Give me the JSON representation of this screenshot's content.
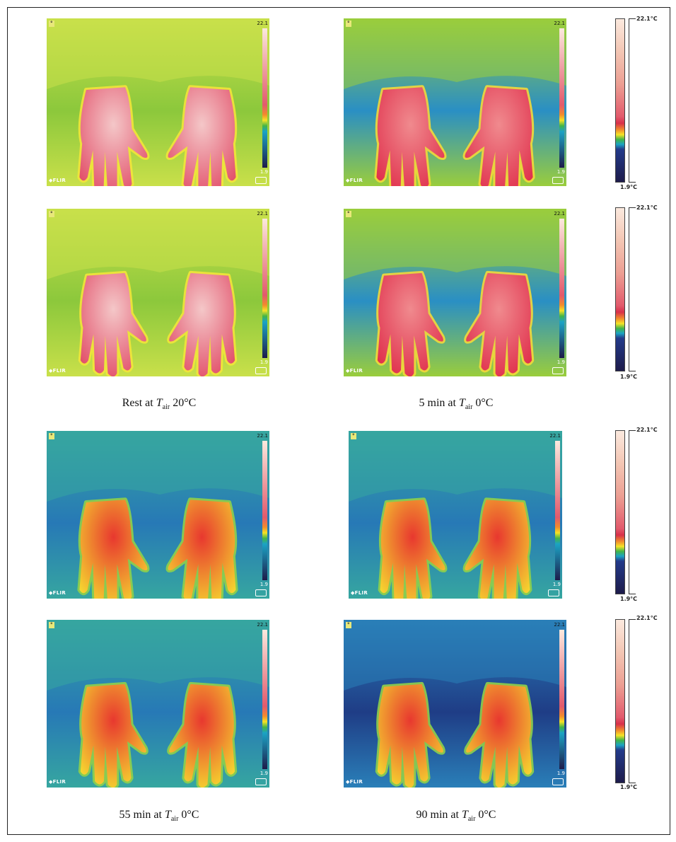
{
  "panels": [
    {
      "id": "rest-back",
      "temp_max": "22.1",
      "temp_min": "1.9",
      "unit": "°C",
      "brand": "FLIR",
      "palette": "warm",
      "view": "back"
    },
    {
      "id": "5min-back",
      "temp_max": "22.1",
      "temp_min": "1.9",
      "unit": "°C",
      "brand": "FLIR",
      "palette": "red",
      "view": "back"
    },
    {
      "id": "rest-palm",
      "temp_max": "22.1",
      "temp_min": "1.9",
      "unit": "°C",
      "brand": "FLIR",
      "palette": "warm",
      "view": "palm"
    },
    {
      "id": "5min-palm",
      "temp_max": "22.1",
      "temp_min": "1.9",
      "unit": "°C",
      "brand": "FLIR",
      "palette": "red",
      "view": "palm"
    },
    {
      "id": "55min-back",
      "temp_max": "22.1",
      "temp_min": "1.9",
      "unit": "°C",
      "brand": "FLIR",
      "palette": "cold",
      "view": "back"
    },
    {
      "id": "90min-back",
      "temp_max": "22.1",
      "temp_min": "1.9",
      "unit": "°C",
      "brand": "FLIR",
      "palette": "cold",
      "view": "back"
    },
    {
      "id": "55min-palm",
      "temp_max": "22.1",
      "temp_min": "1.9",
      "unit": "°C",
      "brand": "FLIR",
      "palette": "cold",
      "view": "palm"
    },
    {
      "id": "90min-palm",
      "temp_max": "22.1",
      "temp_min": "1.9",
      "unit": "°C",
      "brand": "FLIR",
      "palette": "colder",
      "view": "palm"
    }
  ],
  "captions": [
    {
      "pre": "Rest at ",
      "T": "T",
      "sub": "air",
      "post": " 20°C"
    },
    {
      "pre": "5 min at ",
      "T": "T",
      "sub": "air",
      "post": " 0°C"
    },
    {
      "pre": "55 min at ",
      "T": "T",
      "sub": "air",
      "post": " 0°C"
    },
    {
      "pre": "90 min at ",
      "T": "T",
      "sub": "air",
      "post": " 0°C"
    }
  ],
  "scale": {
    "max_label": "22.1°C",
    "min_label": "1.9°C"
  },
  "colors": {
    "warm": {
      "bg": "#8cc83c",
      "bg2": "#c9e04a",
      "hand": "#e2506a",
      "hand2": "#f4c7c8",
      "edge": "#f2e43a"
    },
    "red": {
      "bg": "#2a8fc4",
      "bg2": "#9acd3c",
      "hand": "#e0304c",
      "hand2": "#f08a8e",
      "edge": "#f3d83a"
    },
    "cold": {
      "bg": "#2779b6",
      "bg2": "#36a6a0",
      "hand": "#f5d62f",
      "hand2": "#e8382f",
      "edge": "#8fd04a"
    },
    "colder": {
      "bg": "#1f3d86",
      "bg2": "#2a7fb8",
      "hand": "#f5d62f",
      "hand2": "#e8382f",
      "edge": "#8fd04a"
    }
  }
}
